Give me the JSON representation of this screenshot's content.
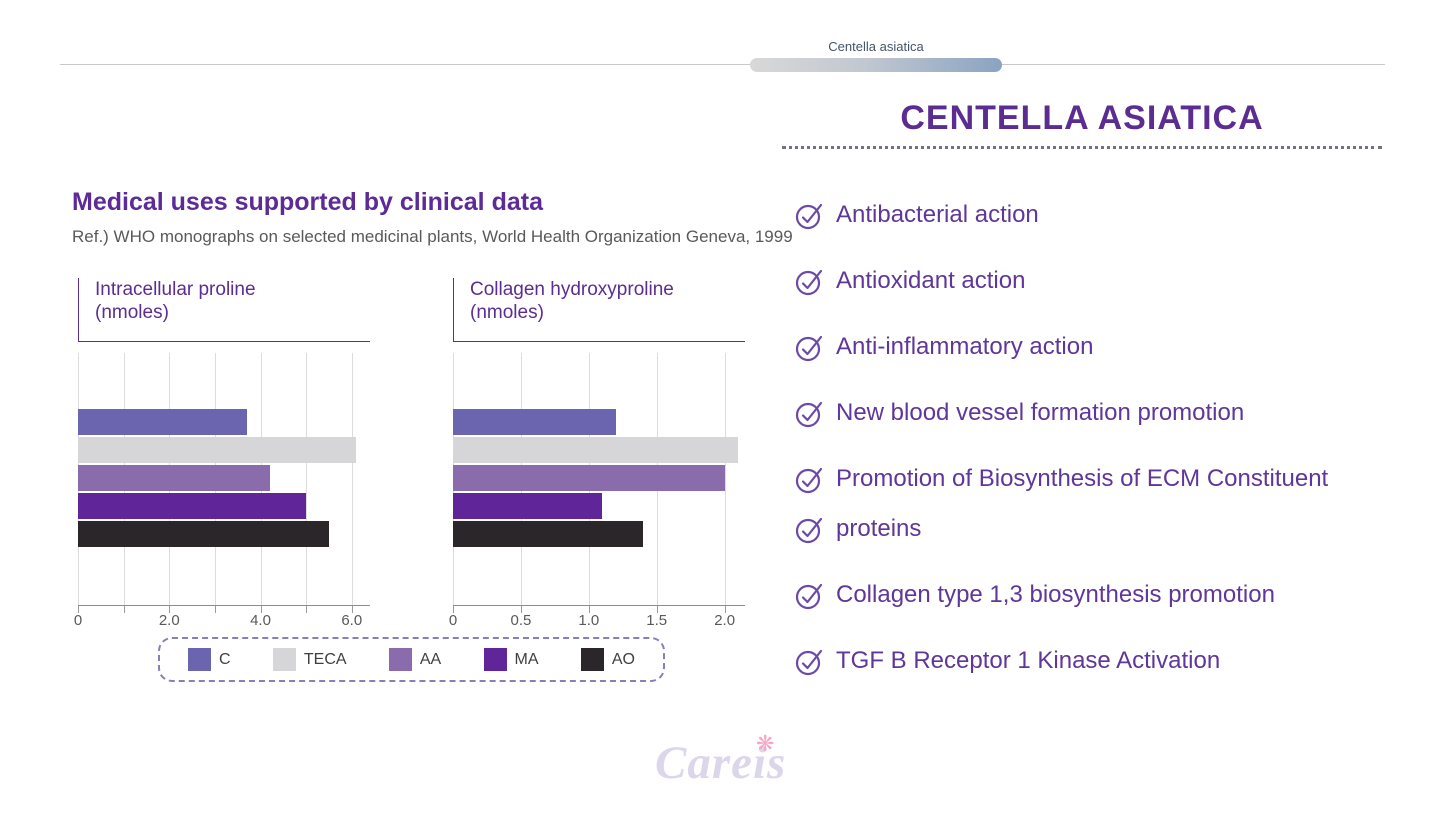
{
  "header": {
    "tab_label": "Centella asiatica"
  },
  "left": {
    "heading": "Medical uses supported by clinical data",
    "reference": "Ref.) WHO monographs on selected medicinal plants, World Health Organization Geneva, 1999"
  },
  "chart_data": [
    {
      "type": "bar",
      "orientation": "horizontal",
      "title": "Intracellular proline",
      "unit": "(nmoles)",
      "categories": [
        "C",
        "TECA",
        "AA",
        "MA",
        "AO"
      ],
      "values": [
        3.7,
        6.1,
        4.2,
        5.0,
        5.5
      ],
      "xlim": [
        0,
        6.4
      ],
      "grid_step": 1.0,
      "grid_max": 6.0,
      "tick_values": [
        0,
        2.0,
        4.0,
        6.0
      ],
      "tick_labels": [
        "0",
        "2.0",
        "4.0",
        "6.0"
      ],
      "grid": "vertical-on",
      "legend_position": "bottom-shared"
    },
    {
      "type": "bar",
      "orientation": "horizontal",
      "title": "Collagen hydroxyproline",
      "unit": "(nmoles)",
      "categories": [
        "C",
        "TECA",
        "AA",
        "MA",
        "AO"
      ],
      "values": [
        1.2,
        2.1,
        2.0,
        1.1,
        1.4
      ],
      "xlim": [
        0,
        2.15
      ],
      "grid_step": 0.5,
      "grid_max": 2.0,
      "tick_values": [
        0,
        0.5,
        1.0,
        1.5,
        2.0
      ],
      "tick_labels": [
        "0",
        "0.5",
        "1.0",
        "1.5",
        "2.0"
      ],
      "grid": "vertical-on",
      "legend_position": "bottom-shared"
    }
  ],
  "legend": {
    "entries": [
      {
        "label": "C",
        "color": "#6A65AE"
      },
      {
        "label": "TECA",
        "color": "#D6D6D8"
      },
      {
        "label": "AA",
        "color": "#8A6BAB"
      },
      {
        "label": "MA",
        "color": "#61259A"
      },
      {
        "label": "AO",
        "color": "#2B2629"
      }
    ]
  },
  "right": {
    "title": "CENTELLA ASIATICA",
    "items": [
      "Antibacterial action",
      "Antioxidant action",
      "Anti-inflammatory action",
      "New blood vessel formation promotion",
      "Promotion of Biosynthesis of ECM Constituent",
      "proteins",
      "Collagen type 1,3 biosynthesis promotion",
      "TGF B Receptor 1 Kinase Activation"
    ]
  },
  "logo": {
    "text": "Careis",
    "flower_glyph": "❋"
  },
  "colors": {
    "accent_purple": "#5C2D91",
    "heading_purple": "#5C2B97",
    "list_purple": "#5F3699",
    "check_icon_purple": "#6B49A8",
    "reference_gray": "#595959",
    "tab_label_slate": "#44546A",
    "pill_gradient_from": "#D8D8D8",
    "pill_gradient_to": "#8AA3C2",
    "legend_border": "#8A7DB8",
    "logo_lavender": "#DCD6EB",
    "flower_pink": "#F2A8C6"
  }
}
